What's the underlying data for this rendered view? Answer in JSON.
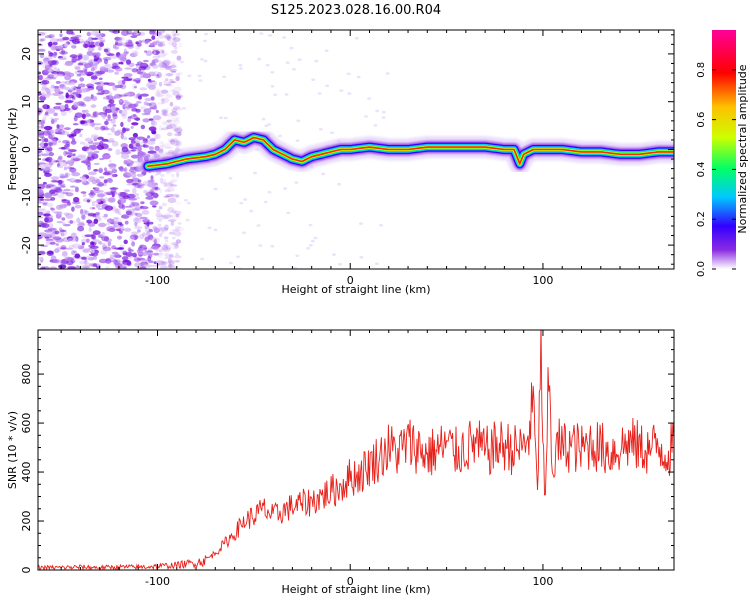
{
  "title": "S125.2023.028.16.00.R04",
  "colorbar": {
    "label": "Normalized spectral amplitude",
    "ticks": [
      "0.0",
      "0.2",
      "0.4",
      "0.6",
      "0.8"
    ],
    "tick_values": [
      0.0,
      0.2,
      0.4,
      0.6,
      0.8
    ],
    "range": [
      0,
      0.96
    ],
    "colors": [
      "#ffffff",
      "#8a2be2",
      "#3300ff",
      "#00c8ff",
      "#00ff66",
      "#ccff00",
      "#ffbf00",
      "#ff0000",
      "#ff0099"
    ]
  },
  "chart_data": [
    {
      "type": "heatmap",
      "xlabel": "Height of straight line (km)",
      "ylabel": "Frequency (Hz)",
      "xlim": [
        -162,
        168
      ],
      "ylim": [
        -25,
        25
      ],
      "x_ticks": [
        -100,
        0,
        100
      ],
      "y_ticks": [
        -20,
        -10,
        0,
        10,
        20
      ],
      "x_tick_labels": [
        "-100",
        "0",
        "100"
      ],
      "y_tick_labels": [
        "-20",
        "-10",
        "0",
        "10",
        "20"
      ],
      "noise_region_x": [
        -162,
        -100
      ],
      "ridge_x": [
        -105,
        -95,
        -85,
        -75,
        -70,
        -65,
        -60,
        -55,
        -50,
        -45,
        -40,
        -35,
        -30,
        -25,
        -20,
        -15,
        -10,
        -5,
        0,
        10,
        20,
        30,
        40,
        50,
        60,
        70,
        80,
        85,
        88,
        90,
        95,
        100,
        110,
        120,
        130,
        140,
        150,
        160,
        168
      ],
      "ridge_freq": [
        -3.5,
        -3,
        -2,
        -1.5,
        -1,
        0,
        2,
        1.5,
        2.5,
        2,
        0,
        -1,
        -2,
        -2.5,
        -1.5,
        -1,
        -0.5,
        0,
        0,
        0.5,
        0,
        0,
        0.5,
        0.5,
        0.5,
        0.5,
        0,
        0,
        -3,
        -1,
        0,
        0,
        0,
        -0.5,
        -0.5,
        -1,
        -1,
        -0.5,
        -0.5
      ]
    },
    {
      "type": "line",
      "xlabel": "Height of straight line (km)",
      "ylabel": "SNR (10 * v/v)",
      "xlim": [
        -162,
        168
      ],
      "ylim": [
        0,
        980
      ],
      "x_ticks": [
        -100,
        0,
        100
      ],
      "y_ticks": [
        0,
        200,
        400,
        600,
        800
      ],
      "x_tick_labels": [
        "-100",
        "0",
        "100"
      ],
      "y_tick_labels": [
        "0",
        "200",
        "400",
        "600",
        "800"
      ],
      "color": "#e8201a",
      "x": [
        -162,
        -150,
        -140,
        -130,
        -120,
        -110,
        -100,
        -90,
        -80,
        -75,
        -70,
        -65,
        -60,
        -55,
        -50,
        -45,
        -40,
        -35,
        -30,
        -25,
        -20,
        -15,
        -10,
        -5,
        0,
        5,
        10,
        15,
        20,
        25,
        30,
        35,
        40,
        45,
        50,
        55,
        60,
        65,
        70,
        75,
        80,
        85,
        90,
        93,
        95,
        97,
        99,
        101,
        103,
        105,
        108,
        110,
        115,
        120,
        125,
        130,
        135,
        140,
        145,
        150,
        155,
        160,
        165,
        168
      ],
      "values": [
        10,
        10,
        12,
        10,
        12,
        12,
        15,
        20,
        30,
        40,
        70,
        110,
        150,
        200,
        220,
        250,
        220,
        240,
        260,
        270,
        280,
        300,
        320,
        340,
        380,
        390,
        430,
        460,
        500,
        480,
        520,
        500,
        470,
        490,
        510,
        480,
        500,
        520,
        480,
        500,
        510,
        490,
        500,
        560,
        700,
        300,
        900,
        200,
        800,
        400,
        520,
        500,
        510,
        490,
        520,
        500,
        480,
        500,
        520,
        500,
        490,
        510,
        470,
        520
      ]
    }
  ]
}
